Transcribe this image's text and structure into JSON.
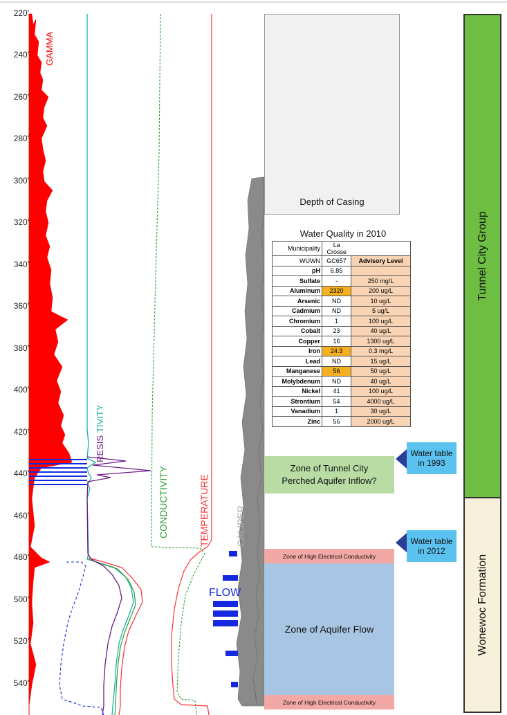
{
  "depth_axis": {
    "min": 220,
    "max": 550,
    "ticks": [
      "220'",
      "240'",
      "260'",
      "280'",
      "300'",
      "320'",
      "340'",
      "360'",
      "380'",
      "400'",
      "420'",
      "440'",
      "460'",
      "480'",
      "500'",
      "520'",
      "540'"
    ]
  },
  "curve_labels": {
    "gamma": "GAMMA",
    "resistivity_a": "RESIS",
    "resistivity_b": "TIVITY",
    "conductivity": "CONDUCTIVITY",
    "temperature": "TEMPERATURE",
    "caliper": "CALIPER",
    "flow": "FLOW"
  },
  "colors": {
    "gamma": "#ff0000",
    "resistivity": "#1ab3a6",
    "resistivity_deep": "#6a1a8a",
    "conductivity": "#2e9e3a",
    "temperature": "#ff3030",
    "caliper": "#8a8a8a",
    "flow": "#1428e0",
    "casing_box": "#f1f1f1",
    "perched_zone": "#b8dca4",
    "high_conductivity_zone": "#f2a8a4",
    "aquifer_zone": "#a8c6e4",
    "water_table": "#5bc2ef",
    "tunnel_city": "#6ebe44",
    "wonewoc": "#f7f1dc"
  },
  "zones": {
    "casing": "Depth of Casing",
    "perched": "Zone of Tunnel City Perched Aquifer Inflow?",
    "high_conductivity_top": "Zone of High Electrical Conductivity",
    "aquifer_flow": "Zone of Aquifer Flow",
    "high_conductivity_bottom": "Zone of High Electrical Conductivity"
  },
  "water_table": {
    "y1993": "Water table in 1993",
    "y2012": "Water table in 2012"
  },
  "formations": {
    "tunnel_city": "Tunnel City Group",
    "wonewoc": "Wonewoc Formation"
  },
  "water_quality": {
    "title": "Water Quality in 2010",
    "municipality_label": "Municipality",
    "municipality_value": "La Crosse",
    "wuwn_label": "WUWN",
    "wuwn_value": "GC657",
    "advisory_header": "Advisory Level",
    "rows": [
      {
        "param": "pH",
        "value": "6.85",
        "advisory": "",
        "highlight": false
      },
      {
        "param": "Sulfate",
        "value": "-",
        "advisory": "250 mg/L",
        "highlight": false
      },
      {
        "param": "Aluminum",
        "value": "2320",
        "advisory": "200 ug/L",
        "highlight": true
      },
      {
        "param": "Arsenic",
        "value": "ND",
        "advisory": "10 ug/L",
        "highlight": false
      },
      {
        "param": "Cadmium",
        "value": "ND",
        "advisory": "5 ug/L",
        "highlight": false
      },
      {
        "param": "Chromium",
        "value": "1",
        "advisory": "100 ug/L",
        "highlight": false
      },
      {
        "param": "Cobalt",
        "value": "23",
        "advisory": "40 ug/L",
        "highlight": false
      },
      {
        "param": "Copper",
        "value": "16",
        "advisory": "1300 ug/L",
        "highlight": false
      },
      {
        "param": "Iron",
        "value": "24.3",
        "advisory": "0.3 mg/L",
        "highlight": true
      },
      {
        "param": "Lead",
        "value": "ND",
        "advisory": "15 ug/L",
        "highlight": false
      },
      {
        "param": "Manganese",
        "value": "56",
        "advisory": "50 ug/L",
        "highlight": true
      },
      {
        "param": "Molybdenum",
        "value": "ND",
        "advisory": "40 ug/L",
        "highlight": false
      },
      {
        "param": "Nickel",
        "value": "41",
        "advisory": "100 ug/L",
        "highlight": false
      },
      {
        "param": "Strontium",
        "value": "54",
        "advisory": "4000 ug/L",
        "highlight": false
      },
      {
        "param": "Vanadium",
        "value": "1",
        "advisory": "30 ug/L",
        "highlight": false
      },
      {
        "param": "Zinc",
        "value": "56",
        "advisory": "2000 ug/L",
        "highlight": false
      }
    ]
  }
}
